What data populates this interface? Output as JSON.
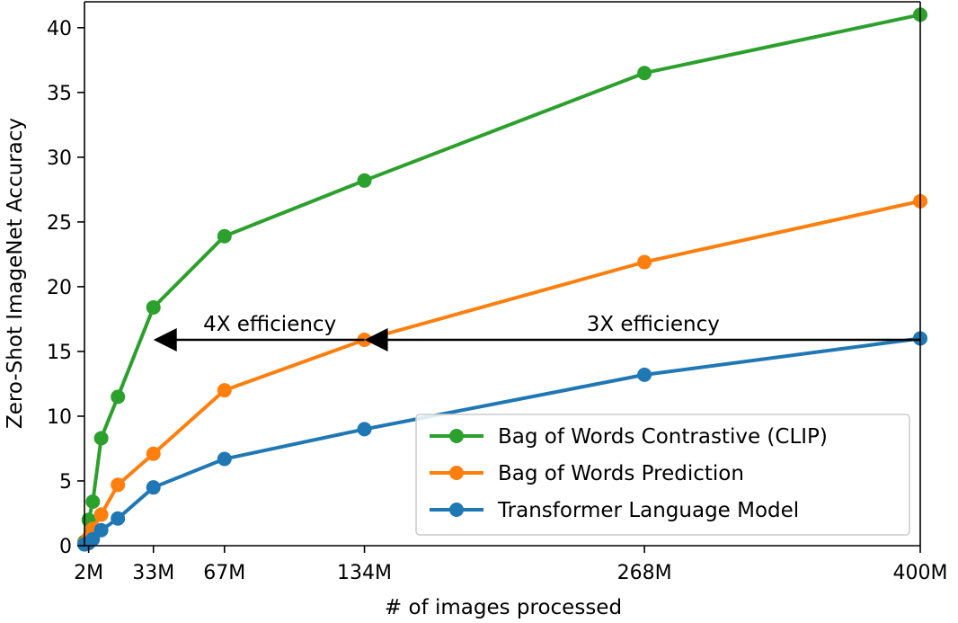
{
  "chart_data": {
    "type": "line",
    "title": "",
    "xlabel": "# of images processed",
    "ylabel": "Zero-Shot ImageNet Accuracy",
    "xlim": [
      0,
      400
    ],
    "ylim": [
      0,
      42
    ],
    "x_tick_values": [
      2,
      33,
      67,
      134,
      268,
      400
    ],
    "x_tick_labels": [
      "2M",
      "33M",
      "67M",
      "134M",
      "268M",
      "400M"
    ],
    "y_tick_values": [
      0,
      5,
      10,
      15,
      20,
      25,
      30,
      35,
      40
    ],
    "y_tick_labels": [
      "0",
      "5",
      "10",
      "15",
      "20",
      "25",
      "30",
      "35",
      "40"
    ],
    "grid": false,
    "legend_position": "lower-right",
    "series": [
      {
        "name": "Bag of Words Contrastive (CLIP)",
        "color": "#2ca02c",
        "x": [
          0,
          2,
          4,
          8,
          16,
          33,
          67,
          134,
          268,
          400
        ],
        "y": [
          0.3,
          2.0,
          3.4,
          8.3,
          11.5,
          18.4,
          23.9,
          28.2,
          36.5,
          41.0
        ]
      },
      {
        "name": "Bag of Words Prediction",
        "color": "#ff7f0e",
        "x": [
          0,
          2,
          4,
          8,
          16,
          33,
          67,
          134,
          268,
          400
        ],
        "y": [
          0.2,
          0.6,
          1.3,
          2.4,
          4.7,
          7.1,
          12.0,
          15.9,
          21.9,
          26.6
        ]
      },
      {
        "name": "Transformer Language Model",
        "color": "#1f77b4",
        "x": [
          0,
          2,
          4,
          8,
          16,
          33,
          67,
          134,
          268,
          400
        ],
        "y": [
          0.1,
          0.2,
          0.5,
          1.2,
          2.1,
          4.5,
          6.7,
          9.0,
          13.2,
          16.0
        ]
      }
    ],
    "annotations": [
      {
        "text": "4X efficiency",
        "arrow_from": [
          134,
          15.9
        ],
        "arrow_to": [
          33,
          15.9
        ]
      },
      {
        "text": "3X efficiency",
        "arrow_from": [
          400,
          15.9
        ],
        "arrow_to": [
          134,
          15.9
        ]
      }
    ]
  }
}
